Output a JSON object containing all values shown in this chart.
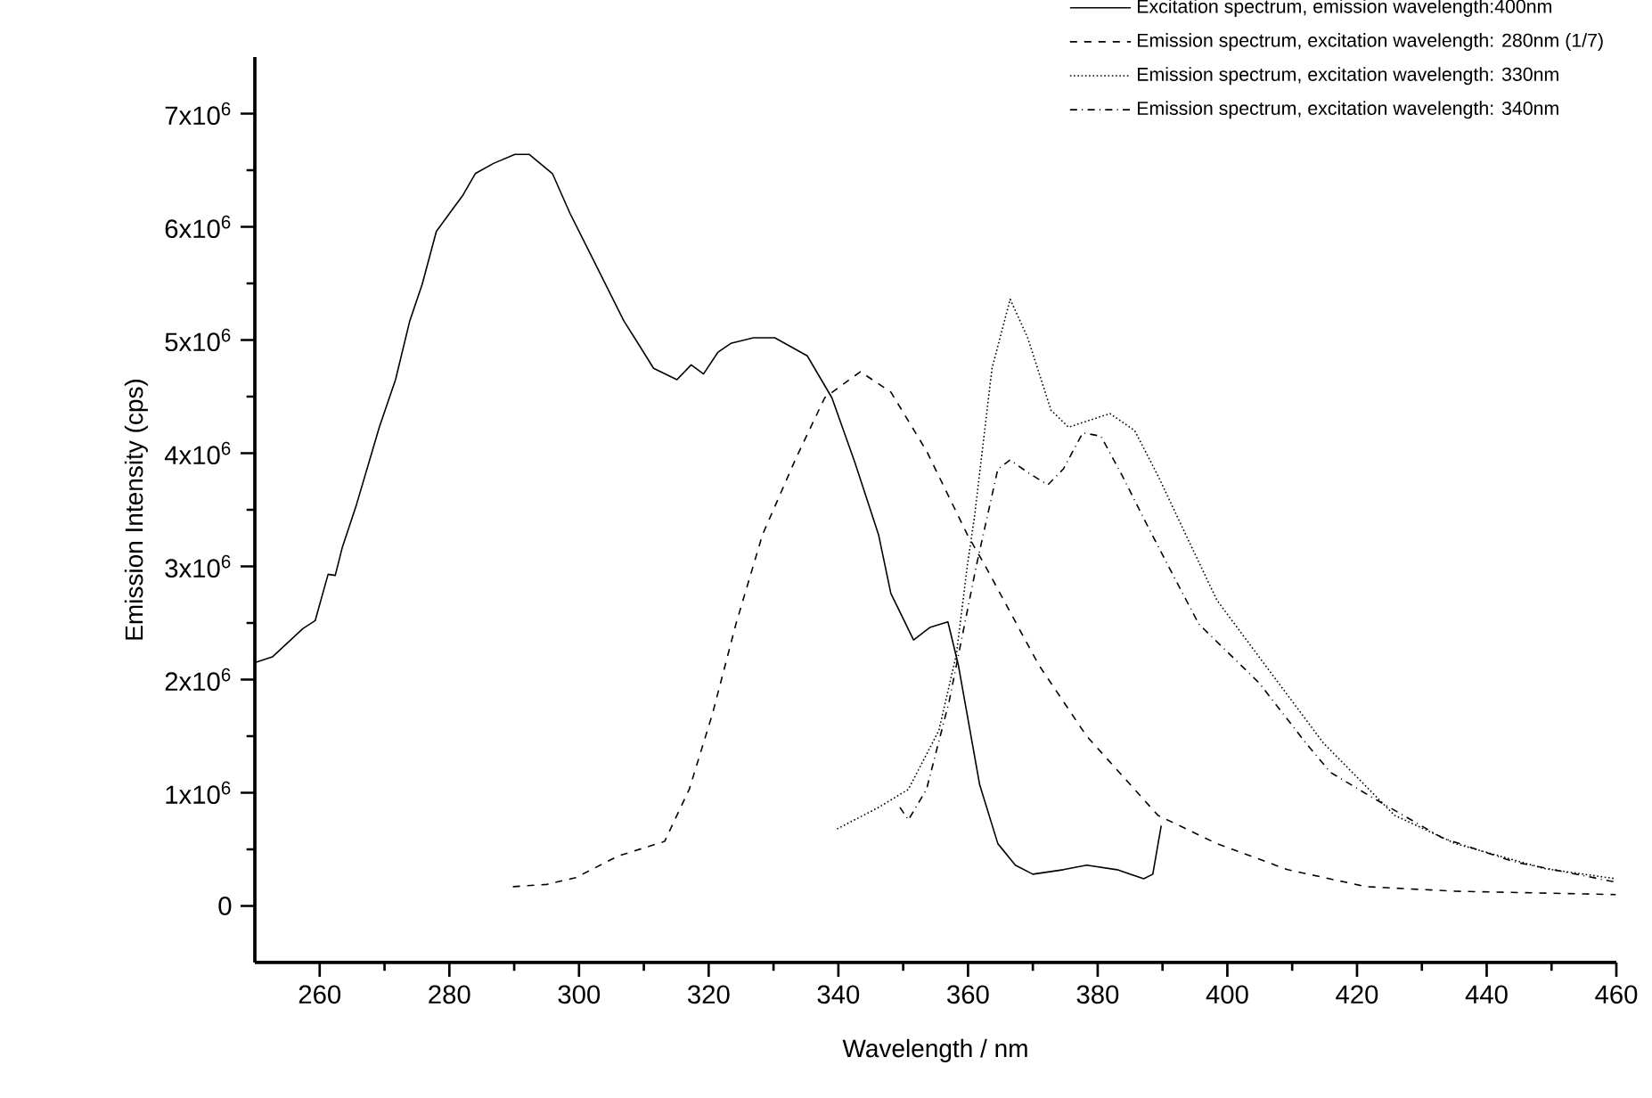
{
  "chart_data": {
    "type": "line",
    "xlabel": "Wavelength / nm",
    "ylabel": "Emission Intensity (cps)",
    "xlim": [
      250,
      460
    ],
    "ylim": [
      -500000,
      7500000
    ],
    "xticks": [
      260,
      280,
      300,
      320,
      340,
      360,
      380,
      400,
      420,
      440,
      460
    ],
    "yticks": [
      0,
      {
        "value": 1000000,
        "label": "1x10$^{6}$"
      },
      {
        "value": 2000000,
        "label": "2x10$^{6}$"
      },
      {
        "value": 3000000,
        "label": "3x10$^{6}$"
      },
      {
        "value": 4000000,
        "label": "4x10$^{6}$"
      },
      {
        "value": 5000000,
        "label": "5x10$^{6}$"
      },
      {
        "value": 6000000,
        "label": "6x10$^{6}$"
      },
      {
        "value": 7000000,
        "label": "7x10$^{6}$"
      }
    ],
    "grid": false,
    "legend": "top right",
    "marker": "none",
    "series": [
      {
        "name": "Excitation spectrum, emission wavelength:400nm",
        "color": "#000000",
        "line_style": "solid",
        "x": [
          250,
          252.7,
          257.4,
          259.3,
          261.3,
          262.4,
          263.5,
          265.7,
          269.2,
          271.7,
          273.9,
          275.8,
          278,
          282.1,
          284,
          286.8,
          290.1,
          292.3,
          295.9,
          298.6,
          301.4,
          306.9,
          309.1,
          311.5,
          315.1,
          317.3,
          319.2,
          321.4,
          323.4,
          326.9,
          330.2,
          335.2,
          339,
          342.6,
          346.2,
          348.1,
          351.6,
          354.1,
          356.9,
          358.5,
          361.8,
          364.6,
          367.3,
          370,
          374.7,
          378.3,
          383,
          387.1,
          388.5,
          389.8
        ],
        "values": [
          2150000,
          2200000,
          2450000,
          2520000,
          2930000,
          2920000,
          3170000,
          3550000,
          4230000,
          4650000,
          5170000,
          5490000,
          5960000,
          6280000,
          6470000,
          6560000,
          6640000,
          6640000,
          6470000,
          6120000,
          5800000,
          5170000,
          4970000,
          4750000,
          4650000,
          4780000,
          4700000,
          4890000,
          4970000,
          5020000,
          5020000,
          4860000,
          4490000,
          3910000,
          3280000,
          2760000,
          2350000,
          2460000,
          2510000,
          2130000,
          1070000,
          550000,
          360000,
          280000,
          320000,
          360000,
          320000,
          240000,
          280000,
          710000
        ]
      },
      {
        "name": "Emission spectrum, excitation wavelength: 280nm (1/7)",
        "color": "#000000",
        "line_style": "dashed",
        "x": [
          289.8,
          295,
          299.5,
          306,
          313.2,
          317,
          320.6,
          324.2,
          328.3,
          333.5,
          337.9,
          343.4,
          348.1,
          353.6,
          359.9,
          362.6,
          370.9,
          378.3,
          389.3,
          398.4,
          409.3,
          421.4,
          435.2,
          459.9
        ],
        "values": [
          170000,
          190000,
          250000,
          440000,
          570000,
          1030000,
          1700000,
          2490000,
          3280000,
          3960000,
          4490000,
          4720000,
          4540000,
          4020000,
          3280000,
          3010000,
          2130000,
          1500000,
          800000,
          550000,
          320000,
          170000,
          130000,
          100000
        ]
      },
      {
        "name": "Emission spectrum, excitation wavelength: 330nm",
        "color": "#000000",
        "line_style": "dotted",
        "x": [
          339.8,
          346.2,
          350.8,
          355.5,
          358.2,
          359.9,
          361,
          363.7,
          366.5,
          369.2,
          372.8,
          375.5,
          381.9,
          385.7,
          389.3,
          394,
          398.4,
          405.8,
          414.8,
          425.8,
          435.2,
          448.9,
          459.9
        ],
        "values": [
          680000,
          870000,
          1030000,
          1550000,
          2220000,
          3010000,
          3440000,
          4750000,
          5360000,
          5020000,
          4380000,
          4230000,
          4350000,
          4200000,
          3800000,
          3230000,
          2700000,
          2130000,
          1440000,
          800000,
          550000,
          330000,
          240000
        ]
      },
      {
        "name": "Emission spectrum, excitation wavelength: 340nm",
        "color": "#000000",
        "line_style": "dashdot",
        "x": [
          349.5,
          350.8,
          353.6,
          357.1,
          361.3,
          364.6,
          366.5,
          369.2,
          372.3,
          374.7,
          377.7,
          380.5,
          383.8,
          387.4,
          391.2,
          395.6,
          404.9,
          412.1,
          415.9,
          422.3,
          433.2,
          444.2,
          459.9
        ],
        "values": [
          870000,
          760000,
          1030000,
          1810000,
          3010000,
          3860000,
          3940000,
          3830000,
          3720000,
          3860000,
          4180000,
          4150000,
          3800000,
          3390000,
          2970000,
          2490000,
          1970000,
          1440000,
          1180000,
          960000,
          600000,
          390000,
          210000
        ]
      }
    ]
  }
}
